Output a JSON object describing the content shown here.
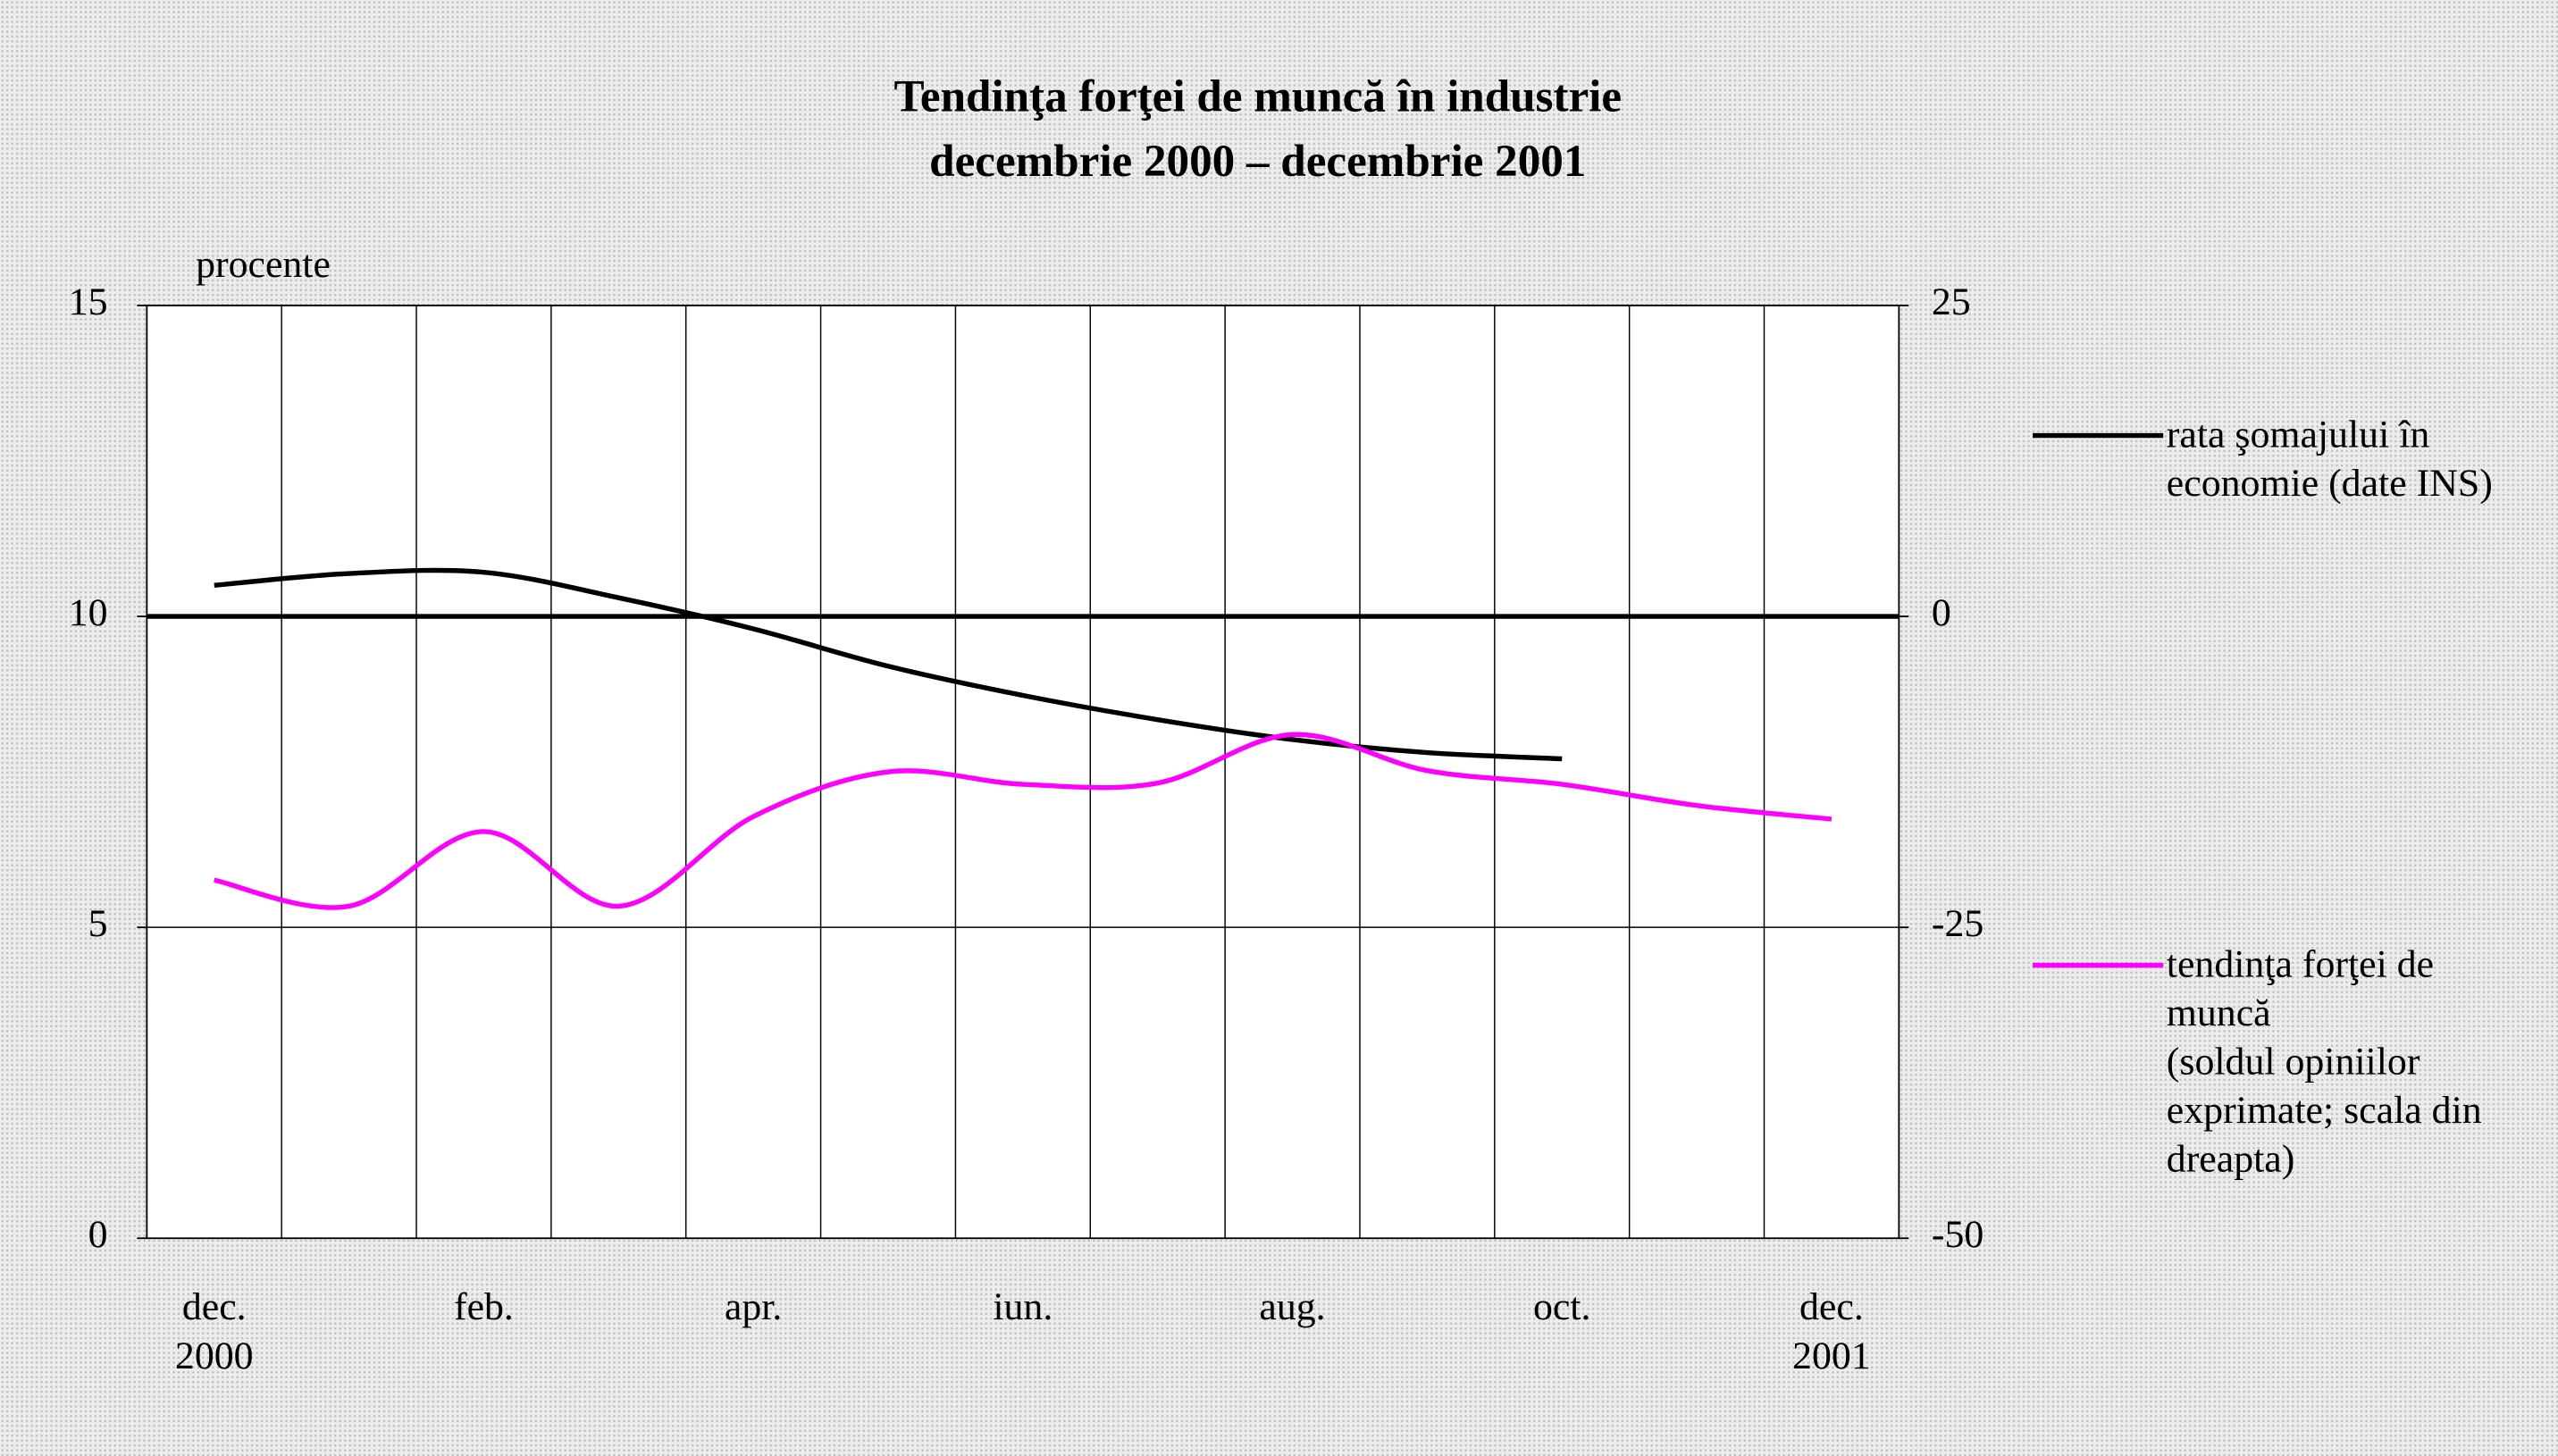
{
  "chart_data": {
    "type": "line",
    "title": "Tendinţa forţei de muncă în industrie",
    "subtitle": "decembrie 2000 – decembrie 2001",
    "ylabel": "procente",
    "categories": [
      "dec.\n2000",
      null,
      "feb.",
      null,
      "apr.",
      null,
      "iun.",
      null,
      "aug.",
      null,
      "oct.",
      null,
      "dec.\n2001"
    ],
    "series": [
      {
        "name": "rata şomajului în economie (date INS)",
        "color": "#000000",
        "values": [
          10.5,
          10.69,
          10.71,
          10.3,
          9.8,
          9.2,
          8.73,
          8.34,
          8.02,
          7.81,
          7.71,
          null,
          null
        ]
      },
      {
        "name": "tendinţa forţei de muncă\n(soldul opiniilor exprimate; scala din dreapta)",
        "color": "#ff00ff",
        "axis": "y2",
        "values": [
          -21.2,
          -23.3,
          -17.3,
          -23.3,
          -16.1,
          -12.5,
          -13.5,
          -13.4,
          -9.5,
          -12.4,
          -13.5,
          -15.2,
          -16.3
        ]
      }
    ],
    "ylim": [
      0,
      15
    ],
    "yticks": [
      0,
      5,
      10,
      15
    ],
    "y2lim": [
      -50,
      25
    ],
    "y2ticks": [
      -50,
      -25,
      0,
      25
    ],
    "grid": true,
    "legend": "right"
  }
}
